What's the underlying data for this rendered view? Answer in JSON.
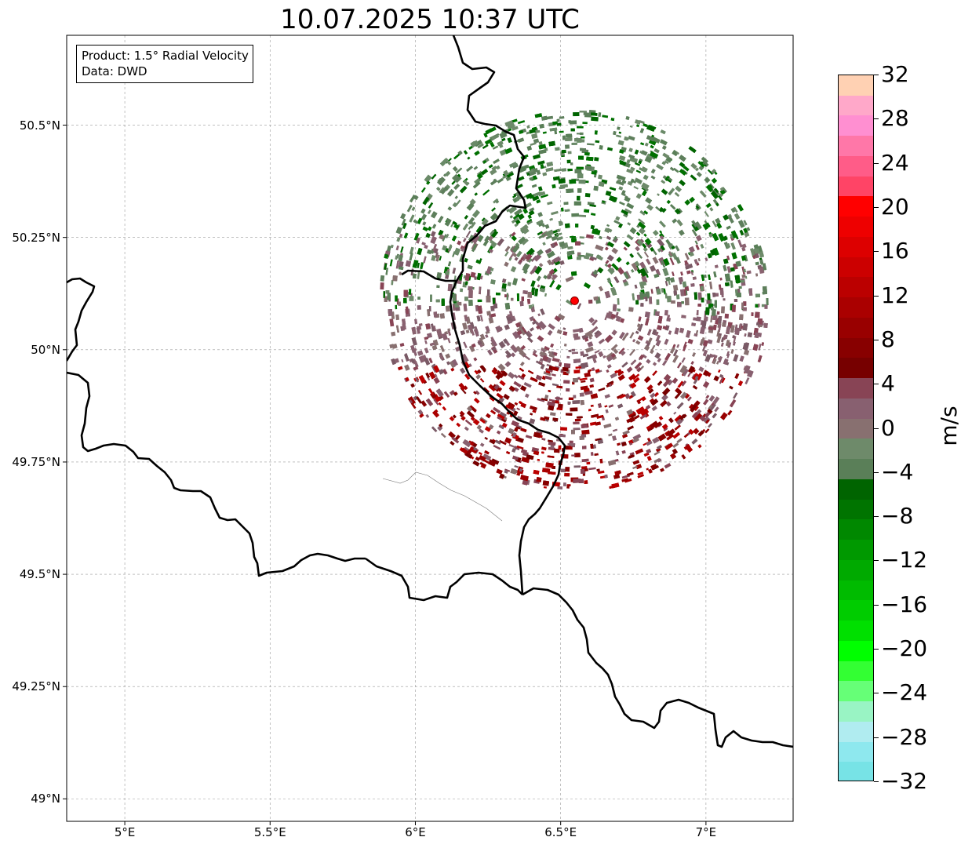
{
  "title": "10.07.2025 10:37 UTC",
  "info": {
    "product": "Product: 1.5° Radial Velocity",
    "data": "Data: DWD"
  },
  "map": {
    "lon_range": [
      4.8,
      7.3
    ],
    "lat_range": [
      48.95,
      50.7
    ],
    "gridlines": true,
    "lon_ticks": [
      {
        "value": 5.0,
        "label": "5°E"
      },
      {
        "value": 5.5,
        "label": "5.5°E"
      },
      {
        "value": 6.0,
        "label": "6°E"
      },
      {
        "value": 6.5,
        "label": "6.5°E"
      },
      {
        "value": 7.0,
        "label": "7°E"
      }
    ],
    "lat_ticks": [
      {
        "value": 50.5,
        "label": "50.5°N"
      },
      {
        "value": 50.25,
        "label": "50.25°N"
      },
      {
        "value": 50.0,
        "label": "50°N"
      },
      {
        "value": 49.75,
        "label": "49.75°N"
      },
      {
        "value": 49.5,
        "label": "49.5°N"
      },
      {
        "value": 49.25,
        "label": "49.25°N"
      },
      {
        "value": 49.0,
        "label": "49°N"
      }
    ],
    "radar_site": {
      "lon": 6.548,
      "lat": 50.109,
      "color": "#ff0000"
    },
    "radar_range_deg_lat": 0.45,
    "border_color": "#000000"
  },
  "colorbar": {
    "unit": "m/s",
    "min": -32,
    "max": 32,
    "step": 2,
    "tick_labels": [
      "32",
      "28",
      "24",
      "20",
      "16",
      "12",
      "8",
      "4",
      "0",
      "−4",
      "−8",
      "−12",
      "−16",
      "−20",
      "−24",
      "−28",
      "−32"
    ],
    "colors_top_to_bottom": [
      "#ffd1b3",
      "#ffa8c9",
      "#ff8fd1",
      "#ff77a8",
      "#ff5c88",
      "#ff4466",
      "#ff0000",
      "#ee0000",
      "#dd0000",
      "#cc0000",
      "#bb0000",
      "#aa0000",
      "#990000",
      "#880000",
      "#770000",
      "#884455",
      "#886070",
      "#887070",
      "#6e8a6a",
      "#5a7f58",
      "#006400",
      "#007400",
      "#008800",
      "#009900",
      "#00aa00",
      "#00bb00",
      "#00cc00",
      "#00e000",
      "#00ff00",
      "#33ff33",
      "#66ff77",
      "#99f4c4",
      "#b0ecf0",
      "#8ee8ee",
      "#77e3e6"
    ]
  }
}
